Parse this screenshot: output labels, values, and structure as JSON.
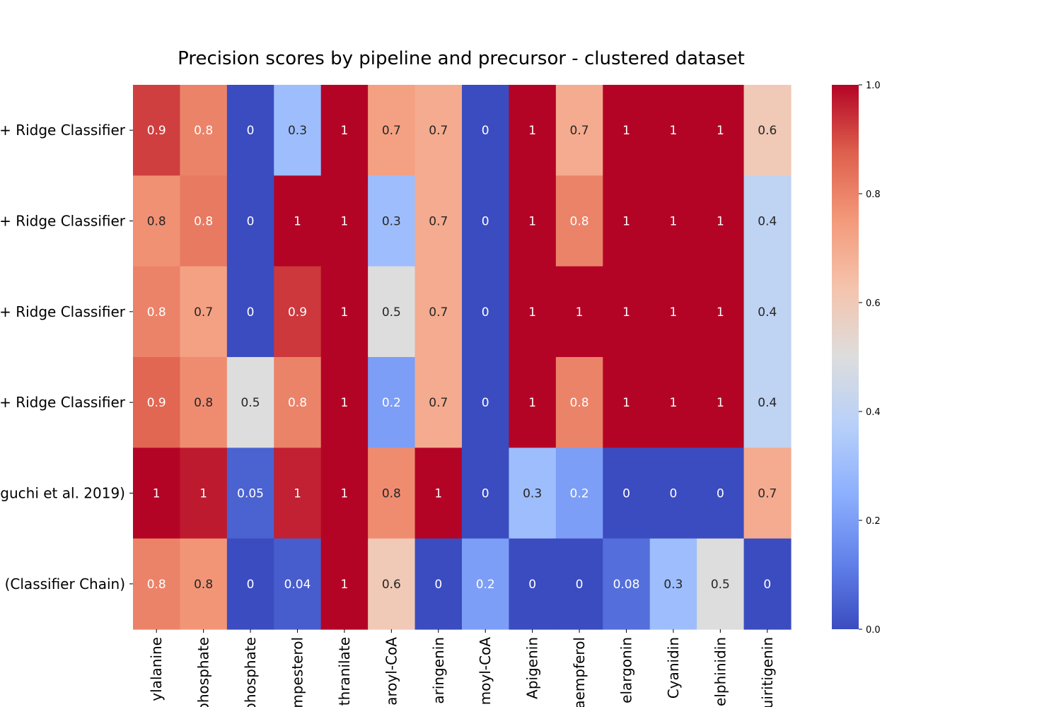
{
  "chart_data": {
    "type": "heatmap",
    "title": "Precision scores by pipeline and precursor - clustered dataset",
    "row_labels": [
      "+ Ridge Classifier",
      "+ Ridge Classifier",
      "+ Ridge Classifier",
      "+ Ridge Classifier",
      "guchi et al. 2019)",
      "(Classifier Chain)"
    ],
    "column_labels": [
      "ylalanine",
      "phosphate",
      "phosphate",
      "mpesterol",
      "thranilate",
      "aroyl-CoA",
      "aringenin",
      "moyl-CoA",
      "Apigenin",
      "aempferol",
      "elargonin",
      "Cyanidin",
      "elphinidin",
      "uiritigenin"
    ],
    "values": [
      [
        0.92,
        0.8,
        0,
        0.3,
        1,
        0.73,
        0.7,
        0,
        1,
        0.7,
        1,
        1,
        1,
        0.6
      ],
      [
        0.77,
        0.82,
        0,
        1,
        1,
        0.3,
        0.7,
        0,
        1,
        0.8,
        1,
        1,
        1,
        0.4
      ],
      [
        0.8,
        0.73,
        0,
        0.93,
        1,
        0.5,
        0.7,
        0,
        1,
        1,
        1,
        1,
        1,
        0.4
      ],
      [
        0.86,
        0.78,
        0.5,
        0.8,
        1,
        0.2,
        0.7,
        0,
        1,
        0.8,
        1,
        1,
        1,
        0.4
      ],
      [
        1,
        0.97,
        0.05,
        0.96,
        1,
        0.78,
        1,
        0,
        0.3,
        0.2,
        0,
        0,
        0,
        0.7
      ],
      [
        0.8,
        0.76,
        0,
        0.04,
        1,
        0.6,
        0,
        0.2,
        0,
        0,
        0.08,
        0.3,
        0.5,
        0
      ]
    ],
    "annotations": [
      [
        "0.9",
        "0.8",
        "0",
        "0.3",
        "1",
        "0.7",
        "0.7",
        "0",
        "1",
        "0.7",
        "1",
        "1",
        "1",
        "0.6"
      ],
      [
        "0.8",
        "0.8",
        "0",
        "1",
        "1",
        "0.3",
        "0.7",
        "0",
        "1",
        "0.8",
        "1",
        "1",
        "1",
        "0.4"
      ],
      [
        "0.8",
        "0.7",
        "0",
        "0.9",
        "1",
        "0.5",
        "0.7",
        "0",
        "1",
        "1",
        "1",
        "1",
        "1",
        "0.4"
      ],
      [
        "0.9",
        "0.8",
        "0.5",
        "0.8",
        "1",
        "0.2",
        "0.7",
        "0",
        "1",
        "0.8",
        "1",
        "1",
        "1",
        "0.4"
      ],
      [
        "1",
        "1",
        "0.05",
        "1",
        "1",
        "0.8",
        "1",
        "0",
        "0.3",
        "0.2",
        "0",
        "0",
        "0",
        "0.7"
      ],
      [
        "0.8",
        "0.8",
        "0",
        "0.04",
        "1",
        "0.6",
        "0",
        "0.2",
        "0",
        "0",
        "0.08",
        "0.3",
        "0.5",
        "0"
      ]
    ],
    "colorbar": {
      "range": [
        0,
        1
      ],
      "ticks": [
        "0.0",
        "0.2",
        "0.4",
        "0.6",
        "0.8",
        "1.0"
      ],
      "colormap": "coolwarm",
      "colors": [
        "#3b4cc0",
        "#dddddd",
        "#b40426"
      ]
    },
    "xlabel": "",
    "ylabel": "",
    "grid": false,
    "legend": "colorbar right"
  }
}
